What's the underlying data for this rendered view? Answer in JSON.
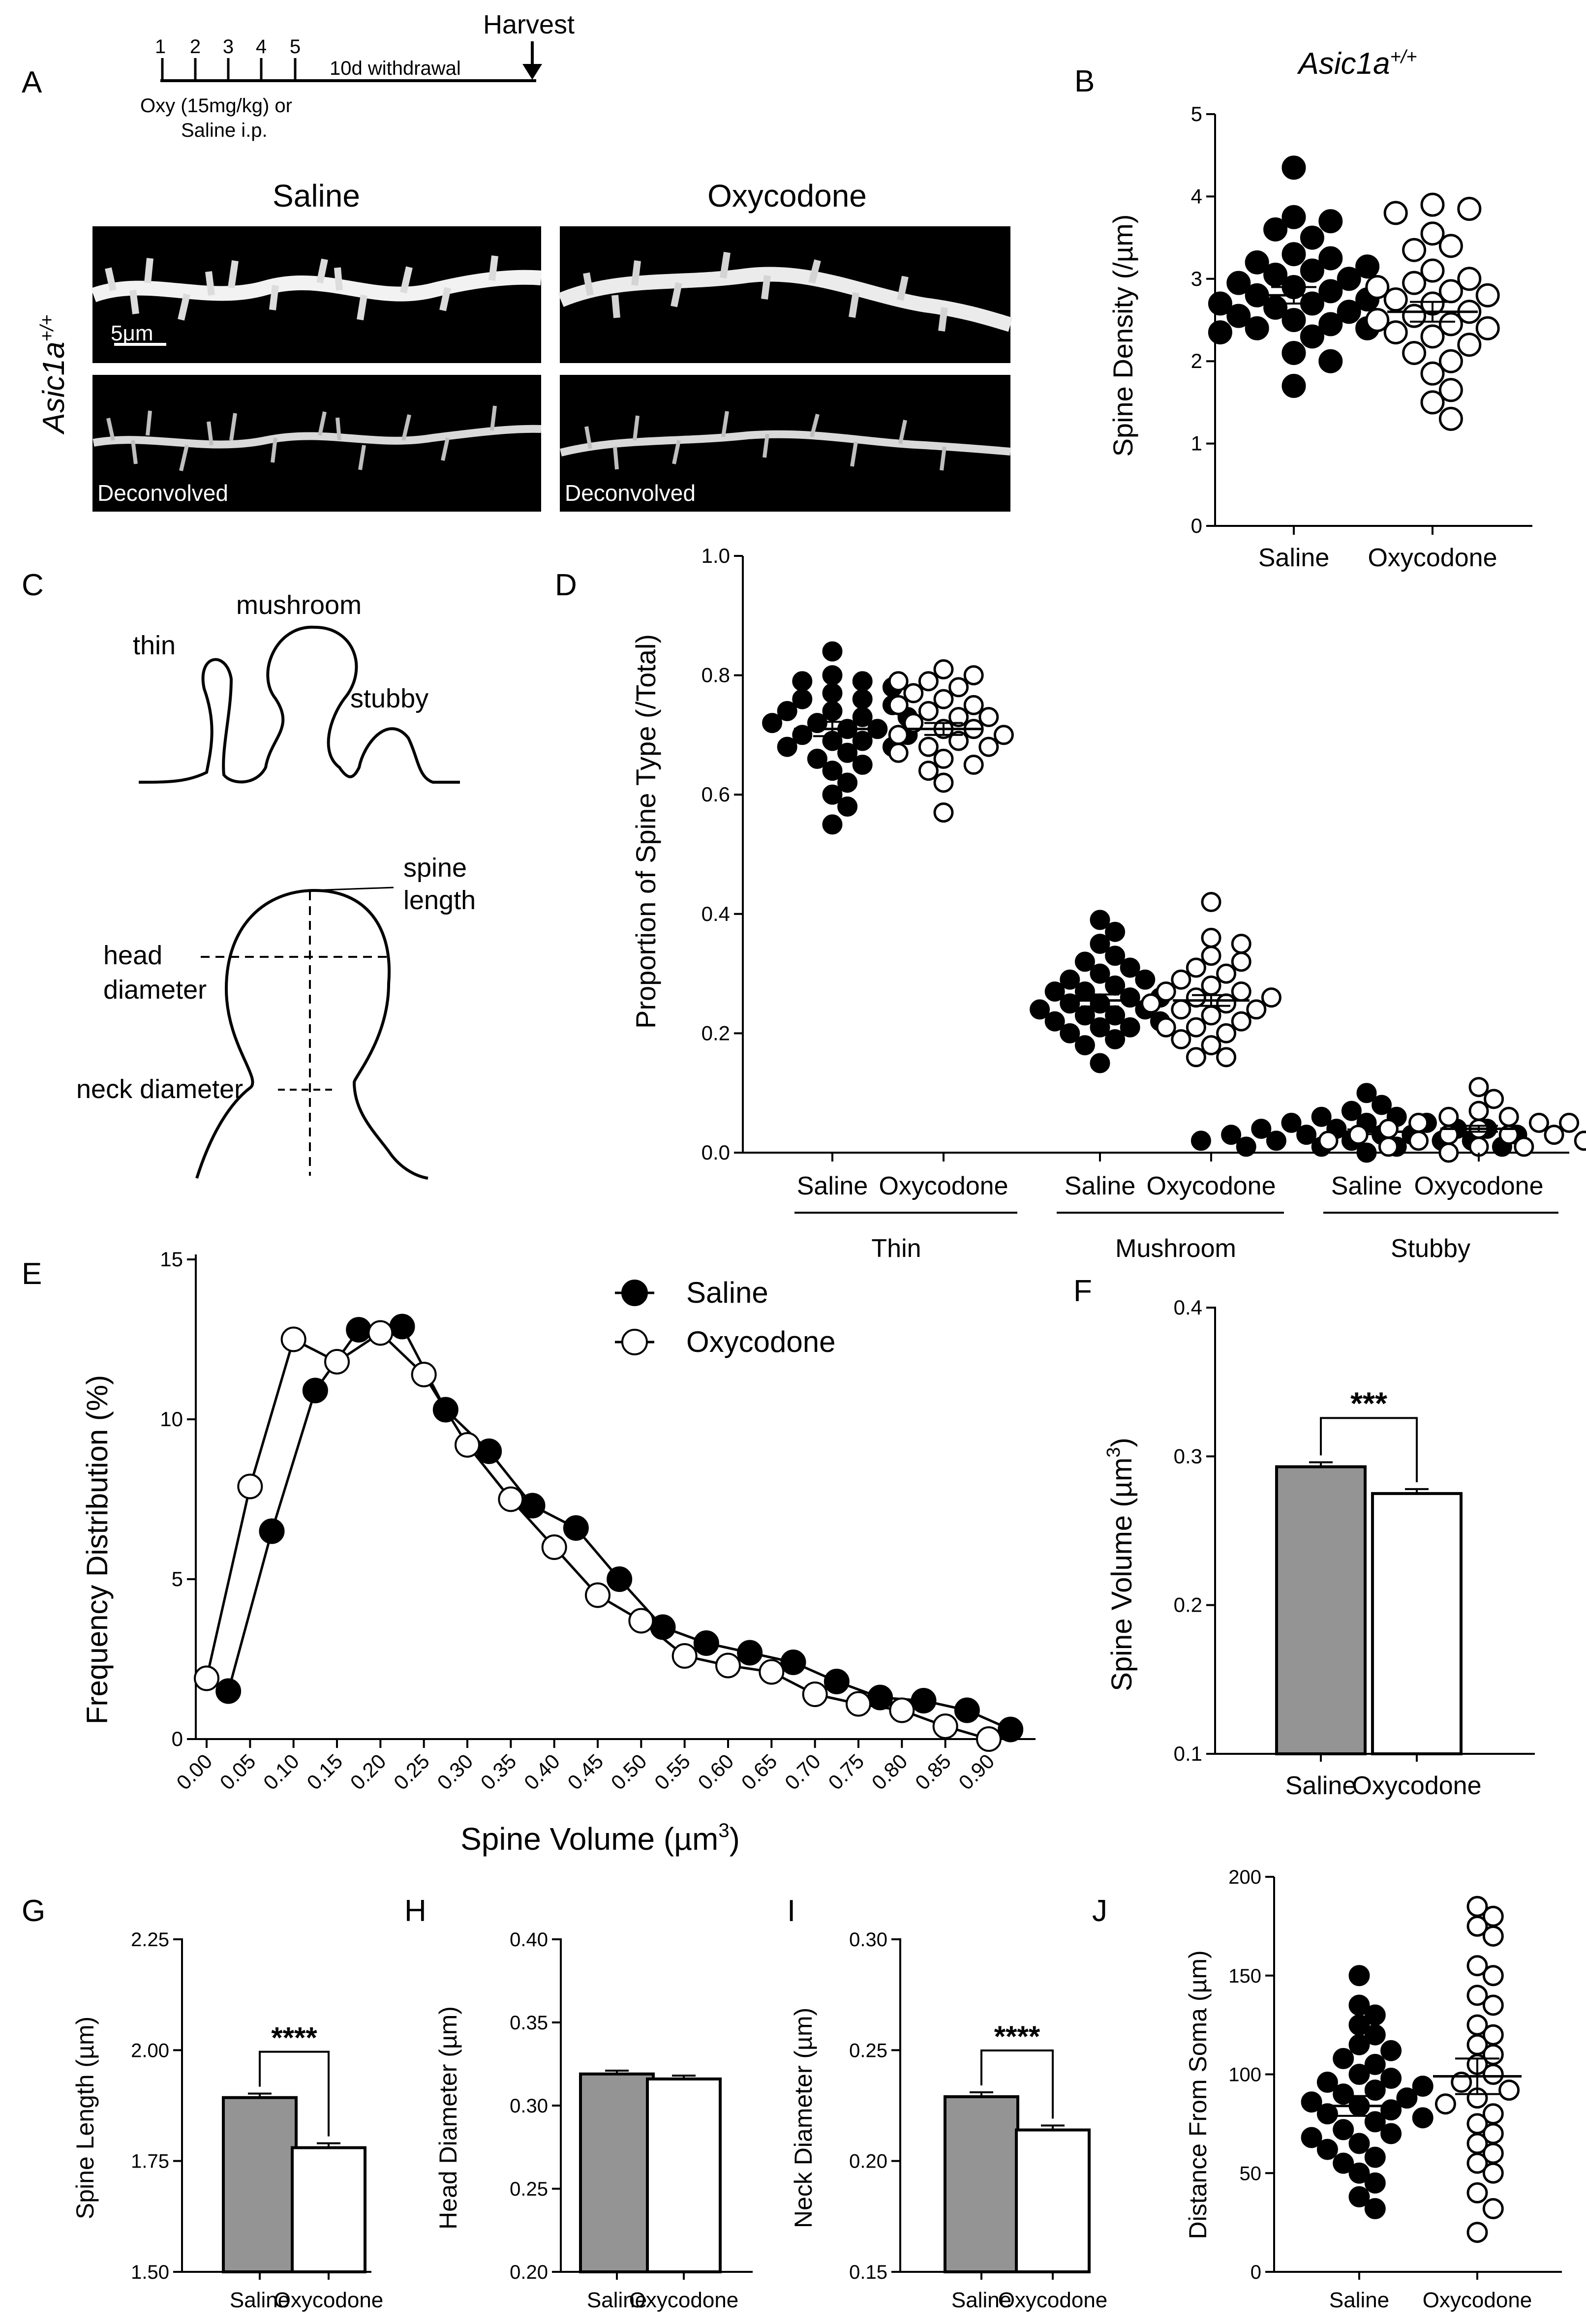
{
  "panels": {
    "A": {
      "letter": "A",
      "timeline": {
        "days": [
          "1",
          "2",
          "3",
          "4",
          "5"
        ],
        "withdrawal": "10d withdrawal",
        "harvest": "Harvest",
        "treatment_line1": "Oxy (15mg/kg) or",
        "treatment_line2": "Saline i.p."
      },
      "col_labels": [
        "Saline",
        "Oxycodone"
      ],
      "row_label": "Asic1a+/+",
      "genotype_base": "Asic1a",
      "genotype_sup": "+/+",
      "scalebar": "5μm",
      "deconvolved": "Deconvolved"
    },
    "C": {
      "letter": "C",
      "labels": {
        "thin": "thin",
        "mushroom": "mushroom",
        "stubby": "stubby",
        "spine": "spine",
        "length": "length",
        "head": "head",
        "diameter": "diameter",
        "neck_diameter": "neck diameter"
      }
    }
  },
  "chart_data": [
    {
      "panel": "B",
      "type": "scatter",
      "title": "Asic1a+/+",
      "title_base": "Asic1a",
      "title_sup": "+/+",
      "ylabel": "Spine Density (/µm)",
      "categories": [
        "Saline",
        "Oxycodone"
      ],
      "ylim": [
        0,
        5
      ],
      "yticks": [
        "0",
        "1",
        "2",
        "3",
        "4",
        "5"
      ],
      "series": [
        {
          "name": "Saline",
          "fill": "filled",
          "mean": 2.8,
          "sem": 0.1,
          "values": [
            4.35,
            3.75,
            3.7,
            3.6,
            3.5,
            3.3,
            3.25,
            3.2,
            3.15,
            3.1,
            3.05,
            3.0,
            2.95,
            2.9,
            2.85,
            2.8,
            2.75,
            2.7,
            2.7,
            2.65,
            2.6,
            2.55,
            2.5,
            2.45,
            2.4,
            2.4,
            2.35,
            2.3,
            2.1,
            2.0,
            1.7
          ]
        },
        {
          "name": "Oxycodone",
          "fill": "open",
          "mean": 2.6,
          "sem": 0.12,
          "values": [
            3.9,
            3.85,
            3.8,
            3.55,
            3.4,
            3.35,
            3.1,
            3.0,
            2.95,
            2.9,
            2.85,
            2.8,
            2.75,
            2.7,
            2.6,
            2.55,
            2.5,
            2.45,
            2.4,
            2.35,
            2.3,
            2.2,
            2.1,
            2.0,
            1.85,
            1.65,
            1.5,
            1.3
          ]
        }
      ]
    },
    {
      "panel": "D",
      "type": "scatter",
      "ylabel": "Proportion of Spine Type (/Total)",
      "ylim": [
        0,
        1.0
      ],
      "yticks": [
        "0.0",
        "0.2",
        "0.4",
        "0.6",
        "0.8",
        "1.0"
      ],
      "groups": [
        "Thin",
        "Mushroom",
        "Stubby"
      ],
      "categories": [
        "Saline",
        "Oxycodone",
        "Saline",
        "Oxycodone",
        "Saline",
        "Oxycodone"
      ],
      "series": [
        {
          "group": "Thin",
          "name": "Saline",
          "fill": "filled",
          "mean": 0.71,
          "sem": 0.012,
          "values": [
            0.84,
            0.8,
            0.79,
            0.79,
            0.78,
            0.77,
            0.76,
            0.76,
            0.75,
            0.74,
            0.74,
            0.73,
            0.73,
            0.72,
            0.72,
            0.71,
            0.71,
            0.7,
            0.7,
            0.69,
            0.69,
            0.68,
            0.68,
            0.67,
            0.66,
            0.65,
            0.64,
            0.62,
            0.6,
            0.58,
            0.55
          ]
        },
        {
          "group": "Thin",
          "name": "Oxycodone",
          "fill": "open",
          "mean": 0.71,
          "sem": 0.01,
          "values": [
            0.81,
            0.8,
            0.79,
            0.79,
            0.78,
            0.77,
            0.76,
            0.75,
            0.75,
            0.74,
            0.73,
            0.73,
            0.72,
            0.71,
            0.71,
            0.7,
            0.7,
            0.69,
            0.68,
            0.68,
            0.67,
            0.66,
            0.65,
            0.64,
            0.62,
            0.57
          ]
        },
        {
          "group": "Mushroom",
          "name": "Saline",
          "fill": "filled",
          "mean": 0.255,
          "sem": 0.01,
          "values": [
            0.39,
            0.37,
            0.35,
            0.33,
            0.32,
            0.31,
            0.3,
            0.29,
            0.29,
            0.28,
            0.27,
            0.27,
            0.26,
            0.26,
            0.25,
            0.25,
            0.24,
            0.24,
            0.23,
            0.23,
            0.22,
            0.22,
            0.21,
            0.21,
            0.2,
            0.19,
            0.18,
            0.15
          ]
        },
        {
          "group": "Mushroom",
          "name": "Oxycodone",
          "fill": "open",
          "mean": 0.255,
          "sem": 0.009,
          "values": [
            0.42,
            0.36,
            0.35,
            0.33,
            0.32,
            0.31,
            0.3,
            0.29,
            0.28,
            0.27,
            0.27,
            0.26,
            0.26,
            0.25,
            0.25,
            0.24,
            0.24,
            0.23,
            0.22,
            0.21,
            0.21,
            0.2,
            0.19,
            0.18,
            0.16,
            0.16
          ]
        },
        {
          "group": "Stubby",
          "name": "Saline",
          "fill": "filled",
          "mean": 0.035,
          "sem": 0.004,
          "values": [
            0.1,
            0.08,
            0.07,
            0.06,
            0.06,
            0.05,
            0.05,
            0.05,
            0.04,
            0.04,
            0.04,
            0.04,
            0.03,
            0.03,
            0.03,
            0.03,
            0.03,
            0.02,
            0.02,
            0.02,
            0.02,
            0.02,
            0.01,
            0.01,
            0.01,
            0.01,
            0.0
          ]
        },
        {
          "group": "Stubby",
          "name": "Oxycodone",
          "fill": "open",
          "mean": 0.04,
          "sem": 0.005,
          "values": [
            0.11,
            0.09,
            0.07,
            0.06,
            0.06,
            0.05,
            0.05,
            0.05,
            0.04,
            0.04,
            0.04,
            0.03,
            0.03,
            0.03,
            0.03,
            0.02,
            0.02,
            0.02,
            0.02,
            0.01,
            0.01,
            0.01,
            0.0
          ]
        }
      ]
    },
    {
      "panel": "E",
      "type": "line",
      "xlabel_base": "Spine Volume (µm",
      "xlabel_sup": "3",
      "xlabel_tail": ")",
      "ylabel": "Frequency Distribution (%)",
      "xlim": [
        0,
        0.9
      ],
      "ylim": [
        0,
        15
      ],
      "xticks": [
        "0.00",
        "0.05",
        "0.10",
        "0.15",
        "0.20",
        "0.25",
        "0.30",
        "0.35",
        "0.40",
        "0.45",
        "0.50",
        "0.55",
        "0.60",
        "0.65",
        "0.70",
        "0.75",
        "0.80",
        "0.85",
        "0.90"
      ],
      "yticks": [
        "0",
        "5",
        "10",
        "15"
      ],
      "legend": [
        "Saline",
        "Oxycodone"
      ],
      "series": [
        {
          "name": "Saline",
          "fill": "filled",
          "x": [
            0.025,
            0.075,
            0.125,
            0.175,
            0.225,
            0.275,
            0.325,
            0.375,
            0.425,
            0.475,
            0.525,
            0.575,
            0.625,
            0.675,
            0.725,
            0.775,
            0.825,
            0.875,
            0.925
          ],
          "y": [
            1.5,
            6.5,
            10.9,
            12.8,
            12.9,
            10.3,
            9.0,
            7.3,
            6.6,
            5.0,
            3.5,
            3.0,
            2.7,
            2.4,
            1.8,
            1.3,
            1.2,
            0.9,
            0.3
          ]
        },
        {
          "name": "Oxycodone",
          "fill": "open",
          "x": [
            0.0,
            0.05,
            0.1,
            0.15,
            0.2,
            0.25,
            0.3,
            0.35,
            0.4,
            0.45,
            0.5,
            0.55,
            0.6,
            0.65,
            0.7,
            0.75,
            0.8,
            0.85,
            0.9
          ],
          "y": [
            1.9,
            7.9,
            12.5,
            11.8,
            12.7,
            11.4,
            9.2,
            7.5,
            6.0,
            4.5,
            3.7,
            2.6,
            2.3,
            2.1,
            1.4,
            1.1,
            0.9,
            0.4,
            0.0
          ]
        }
      ]
    },
    {
      "panel": "F",
      "type": "bar",
      "ylabel_base": "Spine Volume (µm",
      "ylabel_sup": "3",
      "ylabel_tail": ")",
      "categories": [
        "Saline",
        "Oxycodone"
      ],
      "values": [
        0.293,
        0.275
      ],
      "errors": [
        0.003,
        0.003
      ],
      "colors": [
        "#949494",
        "#ffffff"
      ],
      "ylim": [
        0.1,
        0.4
      ],
      "yticks": [
        "0.1",
        "0.2",
        "0.3",
        "0.4"
      ],
      "significance": "***"
    },
    {
      "panel": "G",
      "type": "bar",
      "ylabel": "Spine Length (µm)",
      "categories": [
        "Saline",
        "Oxycodone"
      ],
      "values": [
        1.893,
        1.78
      ],
      "errors": [
        0.009,
        0.01
      ],
      "colors": [
        "#949494",
        "#ffffff"
      ],
      "ylim": [
        1.5,
        2.25
      ],
      "yticks": [
        "1.50",
        "1.75",
        "2.00",
        "2.25"
      ],
      "significance": "****"
    },
    {
      "panel": "H",
      "type": "bar",
      "ylabel": "Head Diameter (µm)",
      "categories": [
        "Saline",
        "Oxycodone"
      ],
      "values": [
        0.319,
        0.316
      ],
      "errors": [
        0.002,
        0.002
      ],
      "colors": [
        "#949494",
        "#ffffff"
      ],
      "ylim": [
        0.2,
        0.4
      ],
      "yticks": [
        "0.20",
        "0.25",
        "0.30",
        "0.35",
        "0.40"
      ],
      "significance": ""
    },
    {
      "panel": "I",
      "type": "bar",
      "ylabel": "Neck Diameter (µm)",
      "categories": [
        "Saline",
        "Oxycodone"
      ],
      "values": [
        0.229,
        0.214
      ],
      "errors": [
        0.002,
        0.002
      ],
      "colors": [
        "#949494",
        "#ffffff"
      ],
      "ylim": [
        0.15,
        0.3
      ],
      "yticks": [
        "0.15",
        "0.20",
        "0.25",
        "0.30"
      ],
      "significance": "****"
    },
    {
      "panel": "J",
      "type": "scatter",
      "ylabel": "Distance From Soma (µm)",
      "categories": [
        "Saline",
        "Oxycodone"
      ],
      "ylim": [
        0,
        200
      ],
      "yticks": [
        "0",
        "50",
        "100",
        "150",
        "200"
      ],
      "series": [
        {
          "name": "Saline",
          "fill": "filled",
          "mean": 84,
          "sem": 5,
          "values": [
            150,
            135,
            130,
            125,
            120,
            115,
            112,
            108,
            105,
            100,
            98,
            96,
            94,
            92,
            90,
            88,
            86,
            84,
            82,
            80,
            78,
            76,
            72,
            70,
            68,
            65,
            62,
            58,
            55,
            50,
            45,
            38,
            32
          ]
        },
        {
          "name": "Oxycodone",
          "fill": "open",
          "mean": 99,
          "sem": 9,
          "values": [
            185,
            180,
            175,
            170,
            155,
            150,
            140,
            135,
            125,
            120,
            115,
            110,
            105,
            100,
            96,
            92,
            88,
            85,
            80,
            75,
            70,
            65,
            60,
            55,
            50,
            40,
            32,
            20
          ]
        }
      ]
    }
  ]
}
